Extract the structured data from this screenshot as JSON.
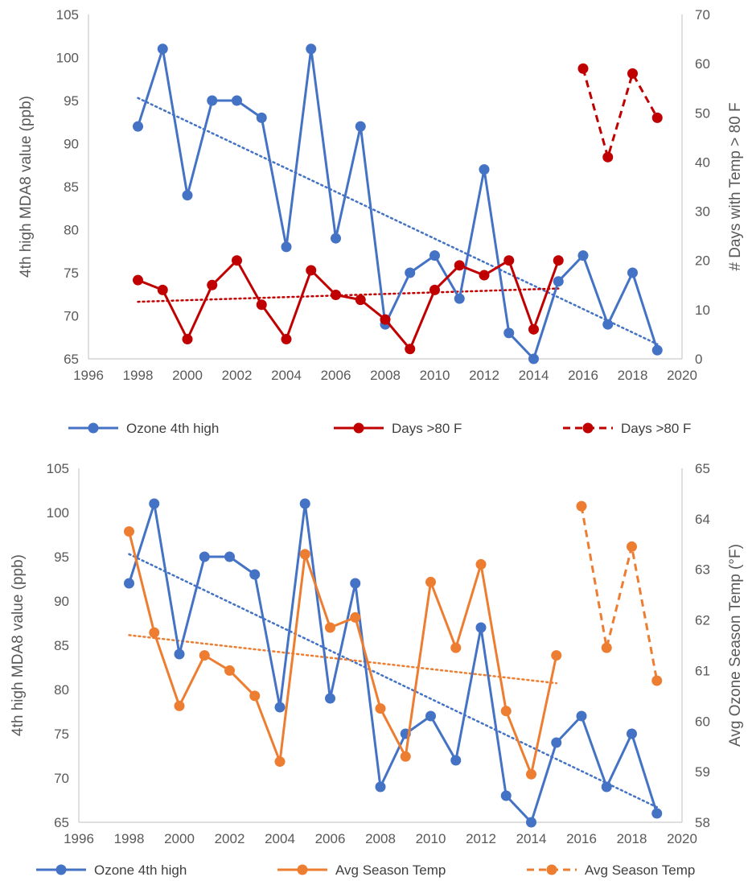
{
  "chart_data": [
    {
      "type": "line",
      "x": [
        1998,
        1999,
        2000,
        2001,
        2002,
        2003,
        2004,
        2005,
        2006,
        2007,
        2008,
        2009,
        2010,
        2011,
        2012,
        2013,
        2014,
        2015,
        2016,
        2017,
        2018,
        2019
      ],
      "xlim": [
        1996,
        2020
      ],
      "x_ticks": [
        "1996",
        "1998",
        "2000",
        "2002",
        "2004",
        "2006",
        "2008",
        "2010",
        "2012",
        "2014",
        "2016",
        "2018",
        "2020"
      ],
      "ylabel": "4th high MDA8 value (ppb)",
      "ylim": [
        65,
        105
      ],
      "y_ticks": [
        "65",
        "70",
        "75",
        "80",
        "85",
        "90",
        "95",
        "100",
        "105"
      ],
      "y2label": "# Days with Temp > 80 F",
      "y2lim": [
        0,
        70
      ],
      "y2_ticks": [
        "0",
        "10",
        "20",
        "30",
        "40",
        "50",
        "60",
        "70"
      ],
      "grid": false,
      "legend_position": "bottom",
      "series": [
        {
          "name": "Ozone 4th high",
          "axis": "left",
          "color": "#4472C4",
          "style": "solid",
          "x": [
            1998,
            1999,
            2000,
            2001,
            2002,
            2003,
            2004,
            2005,
            2006,
            2007,
            2008,
            2009,
            2010,
            2011,
            2012,
            2013,
            2014,
            2015,
            2016,
            2017,
            2018,
            2019
          ],
          "values": [
            92,
            101,
            84,
            95,
            95,
            93,
            78,
            101,
            79,
            92,
            69,
            75,
            77,
            72,
            87,
            68,
            65,
            74,
            77,
            69,
            75,
            66
          ],
          "trendline": [
            95.3,
            66.7
          ]
        },
        {
          "name": "Days >80 F",
          "axis": "right",
          "color": "#C00000",
          "style": "solid",
          "x": [
            1998,
            1999,
            2000,
            2001,
            2002,
            2003,
            2004,
            2005,
            2006,
            2007,
            2008,
            2009,
            2010,
            2011,
            2012,
            2013,
            2014,
            2015
          ],
          "values": [
            16,
            14,
            4,
            15,
            20,
            11,
            4,
            18,
            13,
            12,
            8,
            2,
            14,
            19,
            17,
            20,
            6,
            20
          ],
          "trendline": [
            11.6,
            14.3
          ]
        },
        {
          "name": "Days >80 F",
          "axis": "right",
          "color": "#C00000",
          "style": "dashed",
          "x": [
            2016,
            2017,
            2018,
            2019
          ],
          "values": [
            59,
            41,
            58,
            49
          ]
        }
      ]
    },
    {
      "type": "line",
      "x": [
        1998,
        1999,
        2000,
        2001,
        2002,
        2003,
        2004,
        2005,
        2006,
        2007,
        2008,
        2009,
        2010,
        2011,
        2012,
        2013,
        2014,
        2015,
        2016,
        2017,
        2018,
        2019
      ],
      "xlim": [
        1996,
        2020
      ],
      "x_ticks": [
        "1996",
        "1998",
        "2000",
        "2002",
        "2004",
        "2006",
        "2008",
        "2010",
        "2012",
        "2014",
        "2016",
        "2018",
        "2020"
      ],
      "ylabel": "4th high MDA8 value (ppb)",
      "ylim": [
        65,
        105
      ],
      "y_ticks": [
        "65",
        "70",
        "75",
        "80",
        "85",
        "90",
        "95",
        "100",
        "105"
      ],
      "y2label": "Avg Ozone Season Temp (°F)",
      "y2lim": [
        58,
        65
      ],
      "y2_ticks": [
        "58",
        "59",
        "60",
        "61",
        "62",
        "63",
        "64",
        "65"
      ],
      "grid": false,
      "legend_position": "bottom",
      "series": [
        {
          "name": "Ozone 4th high",
          "axis": "left",
          "color": "#4472C4",
          "style": "solid",
          "x": [
            1998,
            1999,
            2000,
            2001,
            2002,
            2003,
            2004,
            2005,
            2006,
            2007,
            2008,
            2009,
            2010,
            2011,
            2012,
            2013,
            2014,
            2015,
            2016,
            2017,
            2018,
            2019
          ],
          "values": [
            92,
            101,
            84,
            95,
            95,
            93,
            78,
            101,
            79,
            92,
            69,
            75,
            77,
            72,
            87,
            68,
            65,
            74,
            77,
            69,
            75,
            66
          ],
          "trendline": [
            95.3,
            66.7
          ]
        },
        {
          "name": "Avg Season Temp",
          "axis": "right",
          "color": "#ED7D31",
          "style": "solid",
          "x": [
            1998,
            1999,
            2000,
            2001,
            2002,
            2003,
            2004,
            2005,
            2006,
            2007,
            2008,
            2009,
            2010,
            2011,
            2012,
            2013,
            2014,
            2015
          ],
          "values": [
            63.75,
            61.75,
            60.3,
            61.3,
            61.0,
            60.5,
            59.2,
            63.3,
            61.85,
            62.05,
            60.25,
            59.3,
            62.75,
            61.45,
            63.1,
            60.2,
            58.95,
            61.3
          ],
          "trendline": [
            61.7,
            60.75
          ]
        },
        {
          "name": "Avg Season Temp",
          "axis": "right",
          "color": "#ED7D31",
          "style": "dashed",
          "x": [
            2016,
            2017,
            2018,
            2019
          ],
          "values": [
            64.25,
            61.45,
            63.45,
            60.8
          ]
        }
      ]
    }
  ]
}
